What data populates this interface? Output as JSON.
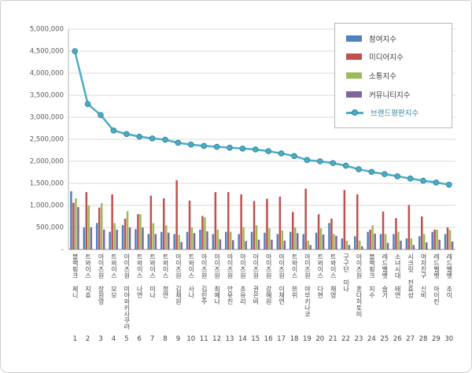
{
  "chart_data": {
    "type": "combo",
    "title": "",
    "categories": [
      "블랙핑크 제니",
      "트와이스 지효",
      "아이즈원 장원영",
      "트와이스 모모",
      "아이즈원 미야와키사쿠라",
      "트와이스 나연",
      "트와이스 미나",
      "트와이스 정연",
      "아이즈원 김채원",
      "트와이스 사나",
      "아이즈원 김민주",
      "아이즈원 최예나",
      "아이즈원 안유진",
      "아이즈원 조유리",
      "아이즈원 권은비",
      "아이즈원 강혜원",
      "아이즈원 이채연",
      "트와이스 쯔위",
      "아이즈원 야부키나코",
      "트와이스 다현",
      "트와이스 채영",
      "구구단 미나",
      "아이즈원 혼다히토미",
      "블랙핑크 지수",
      "레드벨벳 슬기",
      "소녀시대 태연",
      "시크릿 전효성",
      "여자친구 신비",
      "레드벨벳 아이린",
      "레드벨벳 조이"
    ],
    "ranks": [
      "1",
      "2",
      "3",
      "4",
      "5",
      "6",
      "7",
      "8",
      "9",
      "10",
      "11",
      "12",
      "13",
      "14",
      "15",
      "16",
      "17",
      "18",
      "19",
      "20",
      "21",
      "22",
      "23",
      "24",
      "25",
      "26",
      "27",
      "28",
      "29",
      "30"
    ],
    "series": [
      {
        "name": "참여지수",
        "type": "bar",
        "color": "#4F81BD",
        "values": [
          1320000,
          500000,
          600000,
          400000,
          550000,
          460000,
          350000,
          400000,
          350000,
          400000,
          450000,
          350000,
          400000,
          350000,
          400000,
          380000,
          350000,
          400000,
          350000,
          380000,
          600000,
          250000,
          300000,
          400000,
          350000,
          350000,
          250000,
          300000,
          400000,
          350000
        ]
      },
      {
        "name": "미디어지수",
        "type": "bar",
        "color": "#C0504D",
        "values": [
          1060000,
          1300000,
          950000,
          1250000,
          700000,
          800000,
          1220000,
          1160000,
          1570000,
          1110000,
          760000,
          1300000,
          1300000,
          1250000,
          1100000,
          1150000,
          1200000,
          850000,
          1380000,
          800000,
          700000,
          1350000,
          1250000,
          450000,
          860000,
          710000,
          1010000,
          750000,
          450000,
          500000
        ]
      },
      {
        "name": "소통지수",
        "type": "bar",
        "color": "#9BBB59",
        "values": [
          1160000,
          1000000,
          1050000,
          600000,
          870000,
          800000,
          600000,
          550000,
          330000,
          500000,
          730000,
          450000,
          400000,
          500000,
          550000,
          480000,
          430000,
          500000,
          200000,
          480000,
          350000,
          200000,
          200000,
          550000,
          350000,
          400000,
          250000,
          350000,
          450000,
          440000
        ]
      },
      {
        "name": "커뮤니티지수",
        "type": "bar",
        "color": "#8064A2",
        "values": [
          960000,
          500000,
          450000,
          450000,
          500000,
          500000,
          350000,
          380000,
          170000,
          370000,
          410000,
          230000,
          210000,
          190000,
          220000,
          220000,
          200000,
          370000,
          100000,
          340000,
          310000,
          100000,
          70000,
          360000,
          150000,
          200000,
          100000,
          160000,
          220000,
          180000
        ]
      },
      {
        "name": "브랜드평판지수",
        "type": "line",
        "color": "#4BACC6",
        "marker_stroke": "#31859C",
        "values": [
          4500000,
          3300000,
          3050000,
          2700000,
          2620000,
          2560000,
          2520000,
          2490000,
          2420000,
          2380000,
          2350000,
          2330000,
          2310000,
          2290000,
          2270000,
          2230000,
          2180000,
          2120000,
          2030000,
          2000000,
          1960000,
          1900000,
          1820000,
          1760000,
          1710000,
          1660000,
          1610000,
          1560000,
          1520000,
          1470000
        ]
      }
    ],
    "ylim": [
      0,
      5000000
    ],
    "ytick_step": 500000,
    "ytick_labels_bottom_to_top": [
      "-",
      "500,000",
      "1,000,000",
      "1,500,000",
      "2,000,000",
      "2,500,000",
      "3,000,000",
      "3,500,000",
      "4,000,000",
      "4,500,000",
      "5,000,000"
    ],
    "grid": true,
    "legend_position": "top-right"
  }
}
